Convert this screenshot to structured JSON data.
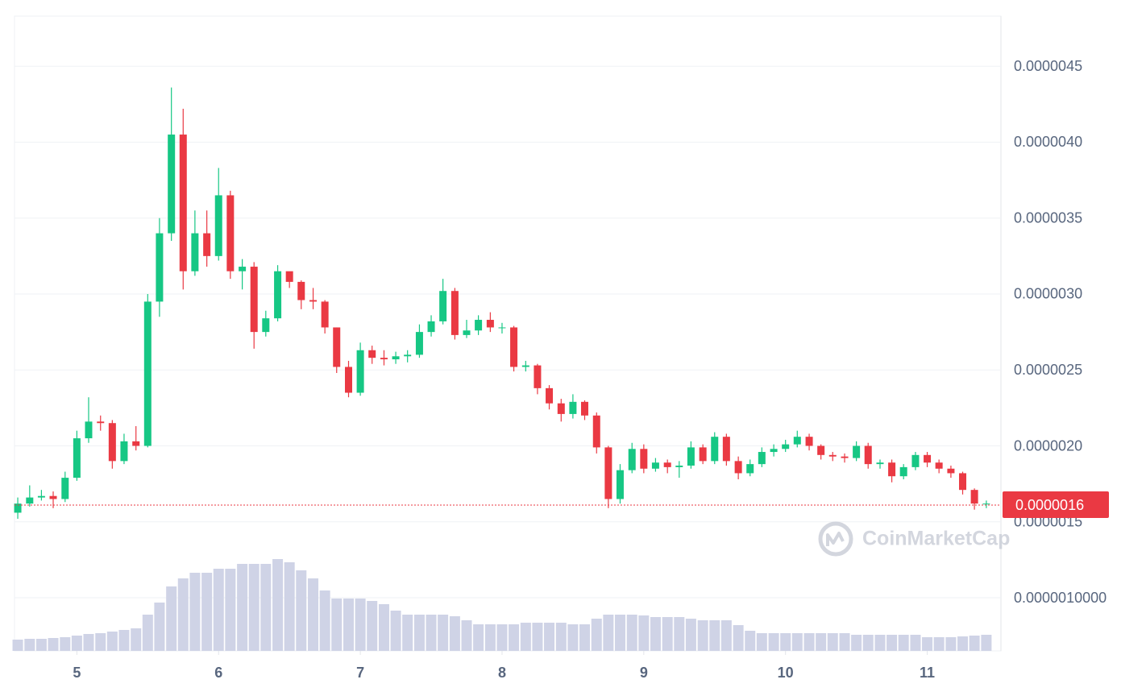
{
  "chart_data": {
    "type": "candlestick",
    "x": [
      4.583,
      4.667,
      4.75,
      4.833,
      4.917,
      5.0,
      5.083,
      5.167,
      5.25,
      5.333,
      5.417,
      5.5,
      5.583,
      5.667,
      5.75,
      5.833,
      5.917,
      6.0,
      6.083,
      6.167,
      6.25,
      6.333,
      6.417,
      6.5,
      6.583,
      6.667,
      6.75,
      6.833,
      6.917,
      7.0,
      7.083,
      7.167,
      7.25,
      7.333,
      7.417,
      7.5,
      7.583,
      7.667,
      7.75,
      7.833,
      7.917,
      8.0,
      8.083,
      8.167,
      8.25,
      8.333,
      8.417,
      8.5,
      8.583,
      8.667,
      8.75,
      8.833,
      8.917,
      9.0,
      9.083,
      9.167,
      9.25,
      9.333,
      9.417,
      9.5,
      9.583,
      9.667,
      9.75,
      9.833,
      9.917,
      10.0,
      10.083,
      10.167,
      10.25,
      10.333,
      10.417,
      10.5,
      10.583,
      10.667,
      10.75,
      10.833,
      10.917,
      11.0,
      11.083,
      11.167,
      11.25,
      11.333,
      11.417
    ],
    "open": [
      1.56e-06,
      1.62e-06,
      1.66e-06,
      1.67e-06,
      1.65e-06,
      1.79e-06,
      2.05e-06,
      2.16e-06,
      2.15e-06,
      1.9e-06,
      2.03e-06,
      2e-06,
      2.95e-06,
      3.4e-06,
      4.05e-06,
      3.15e-06,
      3.4e-06,
      3.25e-06,
      3.65e-06,
      3.15e-06,
      3.18e-06,
      2.75e-06,
      2.84e-06,
      3.15e-06,
      3.08e-06,
      2.96e-06,
      2.95e-06,
      2.78e-06,
      2.52e-06,
      2.35e-06,
      2.63e-06,
      2.58e-06,
      2.57e-06,
      2.59e-06,
      2.6e-06,
      2.75e-06,
      2.82e-06,
      3.02e-06,
      2.73e-06,
      2.76e-06,
      2.83e-06,
      2.78e-06,
      2.78e-06,
      2.52e-06,
      2.53e-06,
      2.38e-06,
      2.28e-06,
      2.21e-06,
      2.29e-06,
      2.2e-06,
      1.99e-06,
      1.65e-06,
      1.84e-06,
      1.98e-06,
      1.85e-06,
      1.89e-06,
      1.86e-06,
      1.87e-06,
      1.99e-06,
      1.9e-06,
      2.06e-06,
      1.9e-06,
      1.82e-06,
      1.88e-06,
      1.96e-06,
      1.98e-06,
      2.01e-06,
      2.06e-06,
      2e-06,
      1.94e-06,
      1.93e-06,
      1.92e-06,
      2e-06,
      1.88e-06,
      1.89e-06,
      1.8e-06,
      1.86e-06,
      1.94e-06,
      1.89e-06,
      1.85e-06,
      1.82e-06,
      1.71e-06,
      1.62e-06
    ],
    "high": [
      1.66e-06,
      1.74e-06,
      1.71e-06,
      1.7e-06,
      1.83e-06,
      2.1e-06,
      2.32e-06,
      2.2e-06,
      2.17e-06,
      2.08e-06,
      2.13e-06,
      3e-06,
      3.5e-06,
      4.36e-06,
      4.22e-06,
      3.55e-06,
      3.55e-06,
      3.83e-06,
      3.68e-06,
      3.23e-06,
      3.21e-06,
      2.89e-06,
      3.19e-06,
      3.12e-06,
      3.09e-06,
      3.04e-06,
      2.96e-06,
      2.78e-06,
      2.56e-06,
      2.68e-06,
      2.66e-06,
      2.63e-06,
      2.62e-06,
      2.63e-06,
      2.8e-06,
      2.86e-06,
      3.1e-06,
      3.04e-06,
      2.83e-06,
      2.86e-06,
      2.88e-06,
      2.81e-06,
      2.79e-06,
      2.56e-06,
      2.54e-06,
      2.4e-06,
      2.31e-06,
      2.34e-06,
      2.3e-06,
      2.22e-06,
      2e-06,
      1.88e-06,
      2.02e-06,
      2.01e-06,
      1.92e-06,
      1.91e-06,
      1.9e-06,
      2.03e-06,
      2.01e-06,
      2.09e-06,
      2.08e-06,
      1.93e-06,
      1.91e-06,
      1.99e-06,
      2.01e-06,
      2.04e-06,
      2.1e-06,
      2.08e-06,
      2.01e-06,
      1.96e-06,
      1.95e-06,
      2.03e-06,
      2.02e-06,
      1.91e-06,
      1.91e-06,
      1.88e-06,
      1.96e-06,
      1.96e-06,
      1.91e-06,
      1.87e-06,
      1.83e-06,
      1.72e-06,
      1.64e-06
    ],
    "low": [
      1.52e-06,
      1.6e-06,
      1.64e-06,
      1.59e-06,
      1.63e-06,
      1.77e-06,
      2.02e-06,
      2.1e-06,
      1.85e-06,
      1.88e-06,
      1.97e-06,
      1.99e-06,
      2.85e-06,
      3.35e-06,
      3.03e-06,
      3.12e-06,
      3.18e-06,
      3.22e-06,
      3.1e-06,
      3.03e-06,
      2.64e-06,
      2.72e-06,
      2.82e-06,
      3.04e-06,
      2.9e-06,
      2.9e-06,
      2.74e-06,
      2.48e-06,
      2.32e-06,
      2.33e-06,
      2.54e-06,
      2.53e-06,
      2.54e-06,
      2.55e-06,
      2.58e-06,
      2.72e-06,
      2.8e-06,
      2.7e-06,
      2.71e-06,
      2.73e-06,
      2.75e-06,
      2.74e-06,
      2.49e-06,
      2.49e-06,
      2.34e-06,
      2.24e-06,
      2.16e-06,
      2.18e-06,
      2.17e-06,
      1.95e-06,
      1.59e-06,
      1.62e-06,
      1.82e-06,
      1.82e-06,
      1.83e-06,
      1.82e-06,
      1.79e-06,
      1.85e-06,
      1.88e-06,
      1.88e-06,
      1.87e-06,
      1.78e-06,
      1.8e-06,
      1.86e-06,
      1.93e-06,
      1.96e-06,
      1.99e-06,
      1.97e-06,
      1.91e-06,
      1.9e-06,
      1.89e-06,
      1.9e-06,
      1.85e-06,
      1.85e-06,
      1.76e-06,
      1.78e-06,
      1.84e-06,
      1.86e-06,
      1.82e-06,
      1.79e-06,
      1.68e-06,
      1.58e-06,
      1.59e-06
    ],
    "close": [
      1.62e-06,
      1.66e-06,
      1.67e-06,
      1.65e-06,
      1.79e-06,
      2.05e-06,
      2.16e-06,
      2.15e-06,
      1.9e-06,
      2.03e-06,
      2e-06,
      2.95e-06,
      3.4e-06,
      4.05e-06,
      3.15e-06,
      3.4e-06,
      3.25e-06,
      3.65e-06,
      3.15e-06,
      3.18e-06,
      2.75e-06,
      2.84e-06,
      3.15e-06,
      3.08e-06,
      2.96e-06,
      2.95e-06,
      2.78e-06,
      2.52e-06,
      2.35e-06,
      2.63e-06,
      2.58e-06,
      2.57e-06,
      2.59e-06,
      2.6e-06,
      2.75e-06,
      2.82e-06,
      3.02e-06,
      2.73e-06,
      2.76e-06,
      2.83e-06,
      2.78e-06,
      2.78e-06,
      2.52e-06,
      2.53e-06,
      2.38e-06,
      2.28e-06,
      2.21e-06,
      2.29e-06,
      2.2e-06,
      1.99e-06,
      1.65e-06,
      1.84e-06,
      1.98e-06,
      1.85e-06,
      1.89e-06,
      1.86e-06,
      1.87e-06,
      1.99e-06,
      1.9e-06,
      2.06e-06,
      1.9e-06,
      1.82e-06,
      1.88e-06,
      1.96e-06,
      1.98e-06,
      2.01e-06,
      2.06e-06,
      2e-06,
      1.94e-06,
      1.93e-06,
      1.92e-06,
      2e-06,
      1.88e-06,
      1.89e-06,
      1.8e-06,
      1.86e-06,
      1.94e-06,
      1.89e-06,
      1.85e-06,
      1.82e-06,
      1.71e-06,
      1.62e-06,
      1.62e-06
    ],
    "up_color": "#16c784",
    "down_color": "#ea3943",
    "volume": {
      "color": "#cfd3e6",
      "values": [
        14,
        15,
        15,
        16,
        17,
        19,
        21,
        22,
        24,
        26,
        28,
        45,
        60,
        80,
        90,
        97,
        97,
        102,
        102,
        108,
        108,
        108,
        114,
        110,
        100,
        90,
        75,
        65,
        65,
        65,
        62,
        58,
        50,
        45,
        45,
        45,
        45,
        43,
        38,
        33,
        33,
        33,
        33,
        35,
        35,
        35,
        35,
        33,
        33,
        40,
        45,
        45,
        45,
        44,
        42,
        42,
        42,
        40,
        38,
        38,
        38,
        32,
        25,
        22,
        22,
        22,
        22,
        22,
        22,
        22,
        22,
        20,
        20,
        20,
        20,
        20,
        20,
        17,
        17,
        17,
        18,
        19,
        20
      ]
    },
    "xlim": [
      4.56,
      11.52
    ],
    "xticks": [
      5,
      6,
      7,
      8,
      9,
      10,
      11
    ],
    "ylim": [
      6.5e-07,
      4.83e-06
    ],
    "yticks": [
      {
        "value": 4.5e-06,
        "label": "0.0000045"
      },
      {
        "value": 4e-06,
        "label": "0.0000040"
      },
      {
        "value": 3.5e-06,
        "label": "0.0000035"
      },
      {
        "value": 3e-06,
        "label": "0.0000030"
      },
      {
        "value": 2.5e-06,
        "label": "0.0000025"
      },
      {
        "value": 2e-06,
        "label": "0.0000020"
      },
      {
        "value": 1.5e-06,
        "label": "0.0000015"
      },
      {
        "value": 1e-06,
        "label": "0.0000010000"
      }
    ],
    "grid": true,
    "last_price": {
      "value": 1.61e-06,
      "label": "0.0000016"
    },
    "watermark": "CoinMarketCap"
  }
}
